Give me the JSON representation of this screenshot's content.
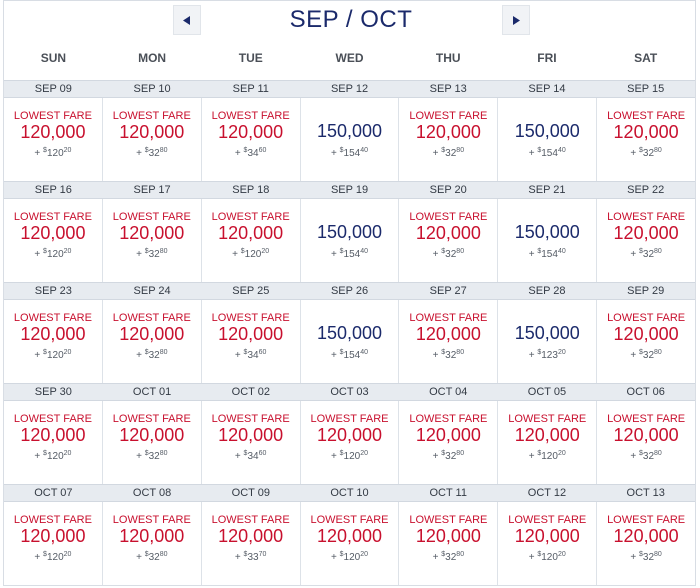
{
  "calendar": {
    "title": "SEP / OCT",
    "prev_label": "previous-month",
    "next_label": "next-month",
    "days_of_week": [
      "SUN",
      "MON",
      "TUE",
      "WED",
      "THU",
      "FRI",
      "SAT"
    ],
    "lowest_fare_label": "LOWEST FARE",
    "tax_prefix": "+",
    "currency_symbol": "$",
    "colors": {
      "lowest": "#c8102e",
      "regular": "#1b2a6b",
      "daybar": "#e7ebf0",
      "title": "#1b2a6b"
    },
    "weeks": [
      [
        {
          "date": "SEP 09",
          "lowest": true,
          "miles": "120,000",
          "tax_d": "120",
          "tax_c": "20"
        },
        {
          "date": "SEP 10",
          "lowest": true,
          "miles": "120,000",
          "tax_d": "32",
          "tax_c": "80"
        },
        {
          "date": "SEP 11",
          "lowest": true,
          "miles": "120,000",
          "tax_d": "34",
          "tax_c": "60"
        },
        {
          "date": "SEP 12",
          "lowest": false,
          "miles": "150,000",
          "tax_d": "154",
          "tax_c": "40"
        },
        {
          "date": "SEP 13",
          "lowest": true,
          "miles": "120,000",
          "tax_d": "32",
          "tax_c": "80"
        },
        {
          "date": "SEP 14",
          "lowest": false,
          "miles": "150,000",
          "tax_d": "154",
          "tax_c": "40"
        },
        {
          "date": "SEP 15",
          "lowest": true,
          "miles": "120,000",
          "tax_d": "32",
          "tax_c": "80"
        }
      ],
      [
        {
          "date": "SEP 16",
          "lowest": true,
          "miles": "120,000",
          "tax_d": "120",
          "tax_c": "20"
        },
        {
          "date": "SEP 17",
          "lowest": true,
          "miles": "120,000",
          "tax_d": "32",
          "tax_c": "80"
        },
        {
          "date": "SEP 18",
          "lowest": true,
          "miles": "120,000",
          "tax_d": "120",
          "tax_c": "20"
        },
        {
          "date": "SEP 19",
          "lowest": false,
          "miles": "150,000",
          "tax_d": "154",
          "tax_c": "40"
        },
        {
          "date": "SEP 20",
          "lowest": true,
          "miles": "120,000",
          "tax_d": "32",
          "tax_c": "80"
        },
        {
          "date": "SEP 21",
          "lowest": false,
          "miles": "150,000",
          "tax_d": "154",
          "tax_c": "40"
        },
        {
          "date": "SEP 22",
          "lowest": true,
          "miles": "120,000",
          "tax_d": "32",
          "tax_c": "80"
        }
      ],
      [
        {
          "date": "SEP 23",
          "lowest": true,
          "miles": "120,000",
          "tax_d": "120",
          "tax_c": "20"
        },
        {
          "date": "SEP 24",
          "lowest": true,
          "miles": "120,000",
          "tax_d": "32",
          "tax_c": "80"
        },
        {
          "date": "SEP 25",
          "lowest": true,
          "miles": "120,000",
          "tax_d": "34",
          "tax_c": "60"
        },
        {
          "date": "SEP 26",
          "lowest": false,
          "miles": "150,000",
          "tax_d": "154",
          "tax_c": "40"
        },
        {
          "date": "SEP 27",
          "lowest": true,
          "miles": "120,000",
          "tax_d": "32",
          "tax_c": "80"
        },
        {
          "date": "SEP 28",
          "lowest": false,
          "miles": "150,000",
          "tax_d": "123",
          "tax_c": "20"
        },
        {
          "date": "SEP 29",
          "lowest": true,
          "miles": "120,000",
          "tax_d": "32",
          "tax_c": "80"
        }
      ],
      [
        {
          "date": "SEP 30",
          "lowest": true,
          "miles": "120,000",
          "tax_d": "120",
          "tax_c": "20"
        },
        {
          "date": "OCT 01",
          "lowest": true,
          "miles": "120,000",
          "tax_d": "32",
          "tax_c": "80"
        },
        {
          "date": "OCT 02",
          "lowest": true,
          "miles": "120,000",
          "tax_d": "34",
          "tax_c": "60"
        },
        {
          "date": "OCT 03",
          "lowest": true,
          "miles": "120,000",
          "tax_d": "120",
          "tax_c": "20"
        },
        {
          "date": "OCT 04",
          "lowest": true,
          "miles": "120,000",
          "tax_d": "32",
          "tax_c": "80"
        },
        {
          "date": "OCT 05",
          "lowest": true,
          "miles": "120,000",
          "tax_d": "120",
          "tax_c": "20"
        },
        {
          "date": "OCT 06",
          "lowest": true,
          "miles": "120,000",
          "tax_d": "32",
          "tax_c": "80"
        }
      ],
      [
        {
          "date": "OCT 07",
          "lowest": true,
          "miles": "120,000",
          "tax_d": "120",
          "tax_c": "20"
        },
        {
          "date": "OCT 08",
          "lowest": true,
          "miles": "120,000",
          "tax_d": "32",
          "tax_c": "80"
        },
        {
          "date": "OCT 09",
          "lowest": true,
          "miles": "120,000",
          "tax_d": "33",
          "tax_c": "70"
        },
        {
          "date": "OCT 10",
          "lowest": true,
          "miles": "120,000",
          "tax_d": "120",
          "tax_c": "20"
        },
        {
          "date": "OCT 11",
          "lowest": true,
          "miles": "120,000",
          "tax_d": "32",
          "tax_c": "80"
        },
        {
          "date": "OCT 12",
          "lowest": true,
          "miles": "120,000",
          "tax_d": "120",
          "tax_c": "20"
        },
        {
          "date": "OCT 13",
          "lowest": true,
          "miles": "120,000",
          "tax_d": "32",
          "tax_c": "80"
        }
      ]
    ]
  }
}
